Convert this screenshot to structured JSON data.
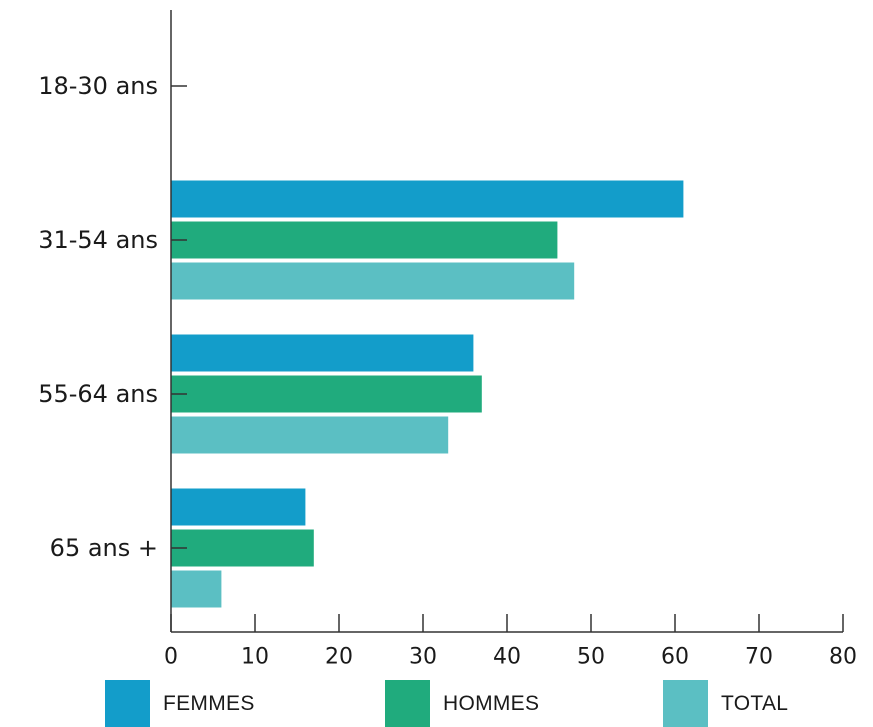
{
  "chart_data": {
    "type": "bar",
    "orientation": "horizontal",
    "categories": [
      "18-30 ans",
      "31-54 ans",
      "55-64 ans",
      "65 ans +"
    ],
    "series": [
      {
        "name": "FEMMES",
        "color": "#139dca",
        "values": [
          0,
          61,
          36,
          16
        ]
      },
      {
        "name": "HOMMES",
        "color": "#20ab7d",
        "values": [
          0,
          46,
          37,
          17
        ]
      },
      {
        "name": "TOTAL",
        "color": "#5bbfc3",
        "values": [
          0,
          48,
          33,
          6
        ]
      }
    ],
    "x_ticks": [
      "0",
      "10",
      "20",
      "30",
      "40",
      "50",
      "60",
      "70",
      "80"
    ],
    "xlim": [
      0,
      80
    ],
    "grid": false,
    "legend_position": "bottom"
  }
}
